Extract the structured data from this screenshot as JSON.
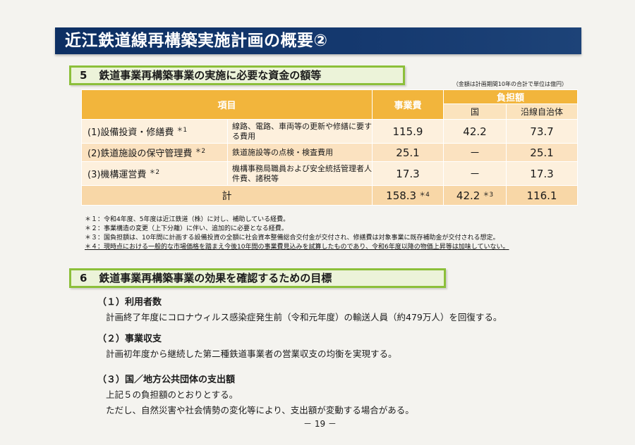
{
  "title": "近江鉄道線再構築実施計画の概要②",
  "section5": {
    "num": "5",
    "title": "鉄道事業再構築事業の実施に必要な資金の額等",
    "unit_note": "（金額は計画期間10年の合計で単位は億円）",
    "headers": {
      "item": "項目",
      "cost": "事業費",
      "burden": "負担額",
      "national": "国",
      "local": "沿線自治体"
    },
    "rows": [
      {
        "name": "(1)設備投資・修繕費",
        "mark": "＊1",
        "desc": "線路、電路、車両等の更新や修繕に要する費用",
        "cost": "115.9",
        "national": "42.2",
        "local": "73.7"
      },
      {
        "name": "(2)鉄道施設の保守管理費",
        "mark": "＊2",
        "desc": "鉄道施設等の点検・検査費用",
        "cost": "25.1",
        "national": "－",
        "local": "25.1"
      },
      {
        "name": "(3)機構運営費",
        "mark": "＊2",
        "desc": "機構事務局職員および安全統括管理者人件費、諸税等",
        "cost": "17.3",
        "national": "－",
        "local": "17.3"
      }
    ],
    "total": {
      "label": "計",
      "cost": "158.3",
      "cost_mark": "＊4",
      "national": "42.2",
      "national_mark": "＊3",
      "local": "116.1"
    },
    "footnotes": [
      "＊１：令和4年度、5年度は近江鉄道（株）に対し、補助している経費。",
      "＊２：事業構造の変更（上下分離）に伴い、追加的に必要となる経費。",
      "＊３：国負担額は、10年間に計画する設備投資の全額に社会資本整備総合交付金が交付され、修繕費は対象事業に既存補助金が交付される想定。",
      "＊４：現時点における一般的な市場価格を踏まえ今後10年間の事業費見込みを試算したものであり、令和6年度以降の物価上昇等は加味していない。"
    ]
  },
  "section6": {
    "num": "6",
    "title": "鉄道事業再構築事業の効果を確認するための目標",
    "items": [
      {
        "heading": "（１）利用者数",
        "lines": [
          "計画終了年度にコロナウィルス感染症発生前（令和元年度）の輸送人員（約479万人）を回復する。"
        ]
      },
      {
        "heading": "（２）事業収支",
        "lines": [
          "計画初年度から継続した第二種鉄道事業者の営業収支の均衡を実現する。"
        ]
      },
      {
        "heading": "（３）国／地方公共団体の支出額",
        "lines": [
          "上記５の負担額のとおりとする。",
          "ただし、自然災害や社会情勢の変化等により、支出額が変動する場合がある。"
        ]
      }
    ]
  },
  "page_number": "－ 19 －",
  "colors": {
    "title_bg": "#0d2f63",
    "section_border": "#8cbf3a",
    "table_header": "#f2b53c"
  }
}
